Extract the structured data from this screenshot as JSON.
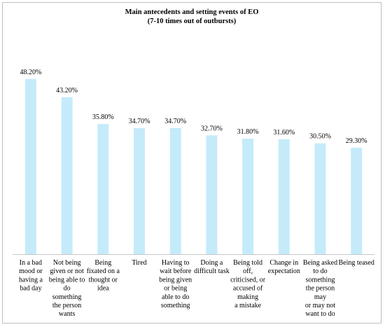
{
  "chart_data": {
    "type": "bar",
    "title_lines": [
      "Main antecedents and setting events of EO",
      "(7-10 times out of outbursts)"
    ],
    "categories": [
      [
        "In a bad",
        "mood or",
        "having a",
        "bad day"
      ],
      [
        "Not being",
        "given or not",
        "being able to",
        "do",
        "something",
        "the person",
        "wants"
      ],
      [
        "Being",
        "fixated on a",
        "thought or",
        "idea"
      ],
      [
        "Tired"
      ],
      [
        "Having to",
        "wait before",
        "being given",
        "or being",
        "able to do",
        "something"
      ],
      [
        "Doing a",
        "difficult task"
      ],
      [
        "Being told",
        "off,",
        "criticised, or",
        "accused of",
        "making",
        "a mistake"
      ],
      [
        "Change in",
        "expectation"
      ],
      [
        "Being asked",
        "to do",
        "something",
        "the person",
        "may",
        "or may not",
        "want to do"
      ],
      [
        "Being teased"
      ]
    ],
    "values": [
      48.2,
      43.2,
      35.8,
      34.7,
      34.7,
      32.7,
      31.8,
      31.6,
      30.5,
      29.3
    ],
    "value_labels": [
      "48.20%",
      "43.20%",
      "35.80%",
      "34.70%",
      "34.70%",
      "32.70%",
      "31.80%",
      "31.60%",
      "30.50%",
      "29.30%"
    ],
    "ylim": [
      0,
      60
    ],
    "bar_color": "#c5ebfb",
    "axis_color": "#c8c8c8",
    "xlabel": "",
    "ylabel": "",
    "grid": false,
    "legend": "none"
  }
}
